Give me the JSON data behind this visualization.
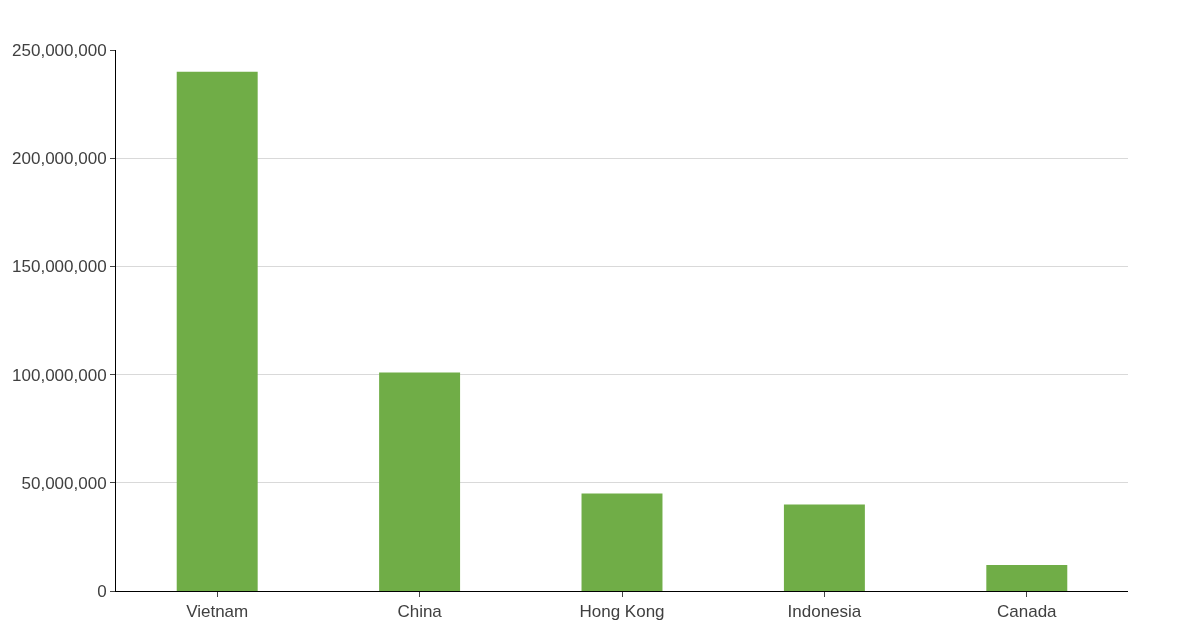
{
  "chart_data": {
    "type": "bar",
    "categories": [
      "Vietnam",
      "China",
      "Hong Kong",
      "Indonesia",
      "Canada"
    ],
    "values": [
      240000000,
      101000000,
      45000000,
      40000000,
      12000000
    ],
    "color": "#70ad47",
    "ylim": [
      0,
      250000000
    ],
    "yticks": [
      {
        "value": 0,
        "label": "0"
      },
      {
        "value": 50000000,
        "label": "50,000,000"
      },
      {
        "value": 100000000,
        "label": "100,000,000"
      },
      {
        "value": 150000000,
        "label": "150,000,000"
      },
      {
        "value": 200000000,
        "label": "200,000,000"
      },
      {
        "value": 250000000,
        "label": "250,000,000"
      }
    ],
    "grid": "y"
  }
}
